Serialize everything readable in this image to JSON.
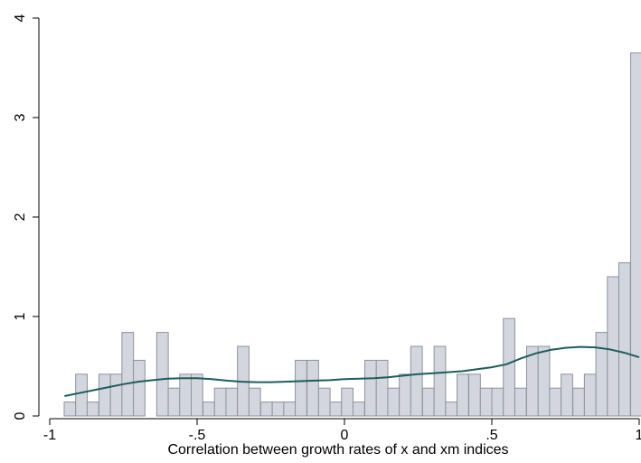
{
  "chart_data": {
    "type": "bar",
    "subtype": "histogram-with-density",
    "title": "",
    "xlabel": "Correlation between growth rates of x and xm indices",
    "ylabel": "",
    "xlim": [
      -1,
      1
    ],
    "ylim": [
      0,
      4
    ],
    "x_ticks": [
      -1,
      -0.5,
      0,
      0.5,
      1
    ],
    "x_tick_labels": [
      "-1",
      "-.5",
      "0",
      ".5",
      "1"
    ],
    "y_ticks": [
      0,
      1,
      2,
      3,
      4
    ],
    "y_tick_labels": [
      "0",
      "1",
      "2",
      "3",
      "4"
    ],
    "grid": false,
    "bin_width": 0.0392,
    "bins": [
      {
        "start": -0.951,
        "value": 0.14
      },
      {
        "start": -0.912,
        "value": 0.42
      },
      {
        "start": -0.873,
        "value": 0.14
      },
      {
        "start": -0.833,
        "value": 0.42
      },
      {
        "start": -0.794,
        "value": 0.42
      },
      {
        "start": -0.755,
        "value": 0.84
      },
      {
        "start": -0.716,
        "value": 0.56
      },
      {
        "start": -0.637,
        "value": 0.84
      },
      {
        "start": -0.598,
        "value": 0.28
      },
      {
        "start": -0.559,
        "value": 0.42
      },
      {
        "start": -0.52,
        "value": 0.42
      },
      {
        "start": -0.48,
        "value": 0.14
      },
      {
        "start": -0.441,
        "value": 0.28
      },
      {
        "start": -0.402,
        "value": 0.28
      },
      {
        "start": -0.363,
        "value": 0.7
      },
      {
        "start": -0.324,
        "value": 0.28
      },
      {
        "start": -0.284,
        "value": 0.14
      },
      {
        "start": -0.245,
        "value": 0.14
      },
      {
        "start": -0.206,
        "value": 0.14
      },
      {
        "start": -0.167,
        "value": 0.56
      },
      {
        "start": -0.127,
        "value": 0.56
      },
      {
        "start": -0.088,
        "value": 0.28
      },
      {
        "start": -0.049,
        "value": 0.14
      },
      {
        "start": -0.01,
        "value": 0.28
      },
      {
        "start": 0.029,
        "value": 0.14
      },
      {
        "start": 0.069,
        "value": 0.56
      },
      {
        "start": 0.108,
        "value": 0.56
      },
      {
        "start": 0.147,
        "value": 0.28
      },
      {
        "start": 0.186,
        "value": 0.42
      },
      {
        "start": 0.225,
        "value": 0.7
      },
      {
        "start": 0.265,
        "value": 0.28
      },
      {
        "start": 0.304,
        "value": 0.7
      },
      {
        "start": 0.343,
        "value": 0.14
      },
      {
        "start": 0.382,
        "value": 0.42
      },
      {
        "start": 0.422,
        "value": 0.42
      },
      {
        "start": 0.461,
        "value": 0.28
      },
      {
        "start": 0.5,
        "value": 0.28
      },
      {
        "start": 0.539,
        "value": 0.98
      },
      {
        "start": 0.578,
        "value": 0.28
      },
      {
        "start": 0.618,
        "value": 0.7
      },
      {
        "start": 0.657,
        "value": 0.7
      },
      {
        "start": 0.696,
        "value": 0.28
      },
      {
        "start": 0.735,
        "value": 0.42
      },
      {
        "start": 0.775,
        "value": 0.28
      },
      {
        "start": 0.814,
        "value": 0.42
      },
      {
        "start": 0.853,
        "value": 0.84
      },
      {
        "start": 0.892,
        "value": 1.4
      },
      {
        "start": 0.931,
        "value": 1.54
      },
      {
        "start": 0.971,
        "value": 3.65
      }
    ],
    "density": {
      "x": [
        -0.95,
        -0.9,
        -0.85,
        -0.8,
        -0.75,
        -0.7,
        -0.65,
        -0.6,
        -0.55,
        -0.5,
        -0.45,
        -0.4,
        -0.35,
        -0.3,
        -0.25,
        -0.2,
        -0.15,
        -0.1,
        -0.05,
        0,
        0.05,
        0.1,
        0.15,
        0.2,
        0.25,
        0.3,
        0.35,
        0.4,
        0.45,
        0.5,
        0.55,
        0.6,
        0.65,
        0.7,
        0.75,
        0.8,
        0.85,
        0.9,
        0.95,
        1.0
      ],
      "y": [
        0.2,
        0.23,
        0.26,
        0.29,
        0.32,
        0.345,
        0.36,
        0.375,
        0.38,
        0.38,
        0.37,
        0.355,
        0.345,
        0.34,
        0.34,
        0.345,
        0.35,
        0.355,
        0.36,
        0.37,
        0.375,
        0.38,
        0.39,
        0.405,
        0.42,
        0.43,
        0.44,
        0.45,
        0.47,
        0.49,
        0.52,
        0.58,
        0.63,
        0.665,
        0.685,
        0.695,
        0.69,
        0.67,
        0.635,
        0.59
      ]
    },
    "colors": {
      "bar_fill": "#d3d6de",
      "bar_stroke": "#8d929c",
      "density_line": "#1e5c5c",
      "axis": "#000000"
    }
  }
}
